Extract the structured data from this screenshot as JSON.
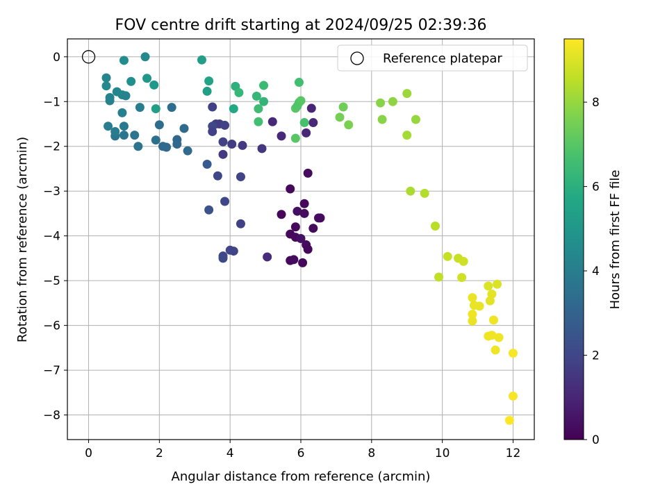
{
  "chart_data": {
    "type": "scatter",
    "title": "FOV centre drift starting at 2024/09/25 02:39:36",
    "xlabel": "Angular distance from reference (arcmin)",
    "ylabel": "Rotation from reference (arcmin)",
    "xlim": [
      -0.6,
      12.6
    ],
    "ylim": [
      -8.55,
      0.4
    ],
    "x_ticks": [
      0,
      2,
      4,
      6,
      8,
      10,
      12
    ],
    "y_ticks": [
      0,
      -1,
      -2,
      -3,
      -4,
      -5,
      -6,
      -7,
      -8
    ],
    "x_tick_labels": [
      "0",
      "2",
      "4",
      "6",
      "8",
      "10",
      "12"
    ],
    "y_tick_labels": [
      "0",
      "−1",
      "−2",
      "−3",
      "−4",
      "−5",
      "−6",
      "−7",
      "−8"
    ],
    "grid": true,
    "legend": {
      "label": "Reference platepar",
      "position": "top-right"
    },
    "reference_point": {
      "x": 0,
      "y": 0
    },
    "colorbar": {
      "label": "Hours from first FF file",
      "range": [
        0,
        9.5
      ],
      "ticks": [
        0,
        2,
        4,
        6,
        8
      ],
      "tick_labels": [
        "0",
        "2",
        "4",
        "6",
        "8"
      ],
      "colormap": "viridis"
    },
    "points": [
      [
        5.7,
        -2.95,
        0.2
      ],
      [
        6.2,
        -2.6,
        0.3
      ],
      [
        5.45,
        -3.52,
        0.2
      ],
      [
        5.9,
        -3.45,
        0.4
      ],
      [
        6.1,
        -3.28,
        0.2
      ],
      [
        6.1,
        -3.5,
        0.3
      ],
      [
        6.5,
        -3.6,
        0.4
      ],
      [
        6.55,
        -3.6,
        0.3
      ],
      [
        5.85,
        -3.8,
        0.2
      ],
      [
        6.35,
        -3.83,
        0.3
      ],
      [
        5.7,
        -3.96,
        0.2
      ],
      [
        5.85,
        -4.03,
        0.3
      ],
      [
        6.0,
        -4.06,
        0.4
      ],
      [
        6.15,
        -4.2,
        0.3
      ],
      [
        6.2,
        -4.3,
        0.2
      ],
      [
        5.7,
        -4.55,
        0.2
      ],
      [
        5.8,
        -4.53,
        0.3
      ],
      [
        6.05,
        -4.6,
        0.2
      ],
      [
        5.05,
        -4.47,
        1.2
      ],
      [
        6.3,
        -1.15,
        1.0
      ],
      [
        6.35,
        -1.47,
        1.1
      ],
      [
        6.15,
        -1.7,
        1.0
      ],
      [
        5.2,
        -1.45,
        1.1
      ],
      [
        5.45,
        -1.77,
        1.1
      ],
      [
        4.9,
        -2.05,
        1.5
      ],
      [
        4.35,
        -1.98,
        1.6
      ],
      [
        4.05,
        -1.95,
        1.7
      ],
      [
        3.8,
        -1.9,
        1.8
      ],
      [
        3.8,
        -2.18,
        1.6
      ],
      [
        3.5,
        -1.12,
        1.8
      ],
      [
        3.6,
        -1.5,
        1.7
      ],
      [
        3.7,
        -1.5,
        1.7
      ],
      [
        3.85,
        -1.53,
        1.8
      ],
      [
        3.5,
        -1.55,
        2.0
      ],
      [
        3.5,
        -1.67,
        1.8
      ],
      [
        4.3,
        -2.68,
        1.9
      ],
      [
        3.65,
        -2.66,
        2.0
      ],
      [
        3.85,
        -3.23,
        2.0
      ],
      [
        4.3,
        -3.73,
        1.8
      ],
      [
        4.0,
        -4.32,
        2.0
      ],
      [
        4.1,
        -4.34,
        1.9
      ],
      [
        3.8,
        -4.45,
        2.0
      ],
      [
        3.8,
        -4.5,
        2.1
      ],
      [
        3.4,
        -3.42,
        2.4
      ],
      [
        3.35,
        -2.4,
        2.7
      ],
      [
        2.1,
        -2.0,
        3.2
      ],
      [
        2.2,
        -2.02,
        3.2
      ],
      [
        2.5,
        -1.85,
        3.1
      ],
      [
        2.5,
        -1.95,
        3.2
      ],
      [
        2.7,
        -1.6,
        3.3
      ],
      [
        2.8,
        -2.1,
        3.3
      ],
      [
        2.35,
        -1.13,
        3.4
      ],
      [
        2.0,
        -1.52,
        3.4
      ],
      [
        1.9,
        -1.86,
        3.5
      ],
      [
        1.4,
        -2.0,
        3.6
      ],
      [
        1.3,
        -1.75,
        3.7
      ],
      [
        1.0,
        -1.75,
        3.7
      ],
      [
        0.75,
        -1.77,
        3.7
      ],
      [
        1.0,
        -1.55,
        3.8
      ],
      [
        0.75,
        -1.67,
        3.9
      ],
      [
        0.55,
        -1.55,
        4.0
      ],
      [
        1.45,
        -1.13,
        4.0
      ],
      [
        0.95,
        -1.25,
        4.1
      ],
      [
        0.6,
        -0.98,
        4.2
      ],
      [
        0.6,
        -0.91,
        4.2
      ],
      [
        0.8,
        -0.78,
        4.3
      ],
      [
        0.95,
        -0.85,
        4.3
      ],
      [
        1.05,
        -0.87,
        4.2
      ],
      [
        0.5,
        -0.65,
        4.4
      ],
      [
        0.5,
        -0.47,
        4.3
      ],
      [
        1.0,
        -0.08,
        4.6
      ],
      [
        1.6,
        0.0,
        4.4
      ],
      [
        1.2,
        -0.55,
        4.7
      ],
      [
        1.65,
        -0.48,
        5.0
      ],
      [
        1.9,
        -1.16,
        5.3
      ],
      [
        1.85,
        -0.63,
        5.1
      ],
      [
        3.2,
        -0.07,
        5.3
      ],
      [
        3.35,
        -0.77,
        5.3
      ],
      [
        3.4,
        -0.54,
        5.5
      ],
      [
        4.1,
        -1.16,
        5.7
      ],
      [
        4.15,
        -0.66,
        6.0
      ],
      [
        4.25,
        -0.8,
        6.3
      ],
      [
        4.75,
        -0.88,
        6.3
      ],
      [
        4.95,
        -1.0,
        6.2
      ],
      [
        4.95,
        -0.64,
        6.4
      ],
      [
        4.8,
        -1.16,
        6.5
      ],
      [
        4.8,
        -1.45,
        6.6
      ],
      [
        5.95,
        -0.57,
        6.6
      ],
      [
        5.95,
        -1.02,
        6.8
      ],
      [
        6.0,
        -0.98,
        7.0
      ],
      [
        5.85,
        -1.15,
        7.0
      ],
      [
        5.9,
        -1.1,
        6.9
      ],
      [
        6.1,
        -1.47,
        6.7
      ],
      [
        5.85,
        -1.82,
        7.0
      ],
      [
        7.2,
        -1.12,
        7.4
      ],
      [
        7.1,
        -1.35,
        7.5
      ],
      [
        7.35,
        -1.52,
        7.6
      ],
      [
        8.25,
        -1.03,
        7.8
      ],
      [
        8.3,
        -1.4,
        7.8
      ],
      [
        8.6,
        -1.0,
        7.9
      ],
      [
        9.0,
        -0.82,
        8.1
      ],
      [
        9.25,
        -1.4,
        8.0
      ],
      [
        9.0,
        -1.75,
        8.2
      ],
      [
        9.1,
        -3.0,
        8.3
      ],
      [
        9.5,
        -3.05,
        8.4
      ],
      [
        9.8,
        -3.78,
        8.5
      ],
      [
        9.9,
        -4.92,
        8.6
      ],
      [
        10.15,
        -4.46,
        8.7
      ],
      [
        10.45,
        -4.5,
        8.7
      ],
      [
        10.6,
        -4.57,
        8.8
      ],
      [
        10.55,
        -4.93,
        8.8
      ],
      [
        11.3,
        -5.12,
        9.0
      ],
      [
        11.55,
        -5.08,
        9.0
      ],
      [
        11.4,
        -5.3,
        9.1
      ],
      [
        11.35,
        -5.45,
        9.1
      ],
      [
        10.85,
        -5.38,
        9.2
      ],
      [
        10.9,
        -5.55,
        9.2
      ],
      [
        11.05,
        -5.57,
        9.2
      ],
      [
        10.85,
        -5.75,
        9.3
      ],
      [
        10.85,
        -5.9,
        9.2
      ],
      [
        11.45,
        -5.88,
        9.3
      ],
      [
        11.3,
        -6.24,
        9.3
      ],
      [
        11.4,
        -6.22,
        9.3
      ],
      [
        11.6,
        -6.27,
        9.3
      ],
      [
        11.5,
        -6.55,
        9.3
      ],
      [
        12.0,
        -6.62,
        9.4
      ],
      [
        12.0,
        -7.58,
        9.4
      ],
      [
        11.9,
        -8.12,
        9.5
      ]
    ]
  }
}
